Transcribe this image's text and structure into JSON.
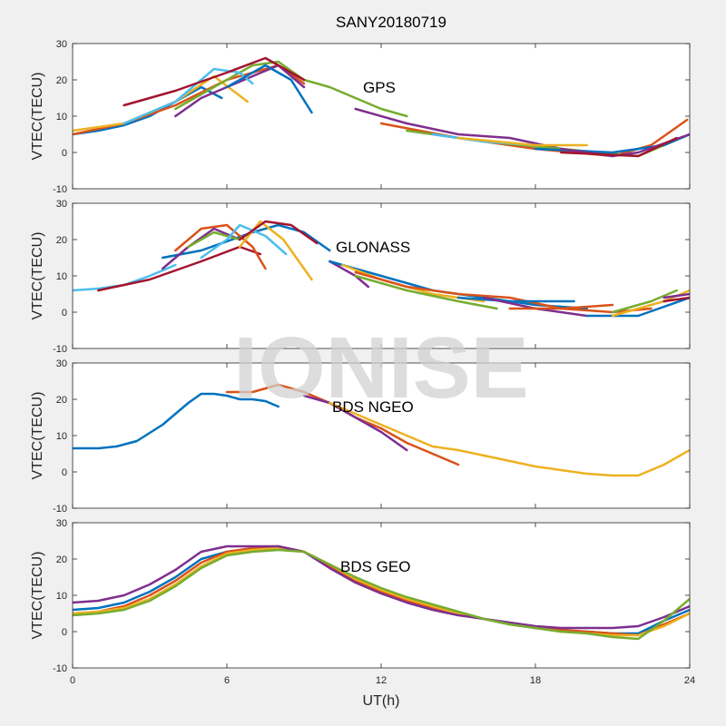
{
  "figure": {
    "title": "SANY20180719",
    "watermark": "IONISE"
  },
  "chart_data": [
    {
      "type": "line",
      "annotation": "GPS",
      "ylabel": "VTEC(TECU)",
      "xlabel": "",
      "xlim": [
        0,
        24
      ],
      "ylim": [
        -10,
        30
      ],
      "xticks": [
        0,
        6,
        12,
        18,
        24
      ],
      "yticks": [
        -10,
        0,
        10,
        20,
        30
      ],
      "series": [
        {
          "color": "#0072BD",
          "x": [
            0,
            1,
            2,
            3,
            4,
            5,
            5.8
          ],
          "y": [
            5,
            6,
            7.5,
            10,
            14,
            18,
            15
          ]
        },
        {
          "color": "#D95319",
          "x": [
            0,
            2,
            4,
            6,
            8,
            9
          ],
          "y": [
            5,
            8,
            13,
            20,
            24,
            19
          ]
        },
        {
          "color": "#EDB120",
          "x": [
            0,
            2,
            4,
            5.5,
            6.8
          ],
          "y": [
            6,
            8,
            14,
            21,
            14
          ]
        },
        {
          "color": "#7E2F8E",
          "x": [
            4,
            5,
            6,
            7,
            8,
            9
          ],
          "y": [
            10,
            15,
            18,
            21,
            24,
            18
          ]
        },
        {
          "color": "#77AC30",
          "x": [
            4,
            5.5,
            7,
            8,
            9,
            10,
            11,
            12,
            13
          ],
          "y": [
            12,
            18,
            24,
            25,
            20,
            18,
            15,
            12,
            10
          ]
        },
        {
          "color": "#4DBEEE",
          "x": [
            2,
            4,
            5.5,
            6.5,
            7
          ],
          "y": [
            8,
            14,
            23,
            22,
            19
          ]
        },
        {
          "color": "#A2142F",
          "x": [
            2,
            4,
            6,
            7.5,
            9
          ],
          "y": [
            13,
            17,
            22,
            26,
            20
          ]
        },
        {
          "color": "#0072BD",
          "x": [
            6,
            7.5,
            8.5,
            9.3
          ],
          "y": [
            18,
            24,
            20,
            11
          ]
        },
        {
          "color": "#7E2F8E",
          "x": [
            11,
            13,
            15,
            17,
            19
          ],
          "y": [
            12,
            8,
            5,
            4,
            1
          ]
        },
        {
          "color": "#D95319",
          "x": [
            12,
            15,
            18,
            21,
            22.5,
            23.9
          ],
          "y": [
            8,
            4,
            1,
            -1,
            2,
            9
          ]
        },
        {
          "color": "#77AC30",
          "x": [
            13,
            16,
            19,
            22,
            24
          ],
          "y": [
            6,
            3,
            1,
            -1,
            5
          ]
        },
        {
          "color": "#4DBEEE",
          "x": [
            14,
            16,
            18
          ],
          "y": [
            5,
            3,
            2
          ]
        },
        {
          "color": "#EDB120",
          "x": [
            15,
            18,
            20
          ],
          "y": [
            4,
            2,
            2
          ]
        },
        {
          "color": "#0072BD",
          "x": [
            18,
            21,
            23,
            24
          ],
          "y": [
            1,
            0,
            2,
            5
          ]
        },
        {
          "color": "#7E2F8E",
          "x": [
            19,
            21,
            22,
            24
          ],
          "y": [
            1,
            -1,
            0,
            5
          ]
        },
        {
          "color": "#A2142F",
          "x": [
            19,
            22,
            23.5
          ],
          "y": [
            0,
            -1,
            4
          ]
        }
      ]
    },
    {
      "type": "line",
      "annotation": "GLONASS",
      "ylabel": "VTEC(TECU)",
      "xlabel": "",
      "xlim": [
        0,
        24
      ],
      "ylim": [
        -10,
        30
      ],
      "xticks": [
        0,
        6,
        12,
        18,
        24
      ],
      "yticks": [
        -10,
        0,
        10,
        20,
        30
      ],
      "series": [
        {
          "color": "#4DBEEE",
          "x": [
            0,
            1,
            2,
            3,
            4
          ],
          "y": [
            6,
            6.5,
            7.5,
            10,
            13
          ]
        },
        {
          "color": "#A2142F",
          "x": [
            1,
            3,
            5,
            6.5,
            7.3
          ],
          "y": [
            6,
            9,
            14,
            18,
            16
          ]
        },
        {
          "color": "#0072BD",
          "x": [
            3.5,
            5,
            7,
            8,
            9,
            10
          ],
          "y": [
            15,
            17,
            22,
            24,
            22,
            17
          ]
        },
        {
          "color": "#D95319",
          "x": [
            4,
            5,
            6,
            7,
            7.5
          ],
          "y": [
            17,
            23,
            24,
            18,
            12
          ]
        },
        {
          "color": "#7E2F8E",
          "x": [
            3.5,
            4.5,
            5.5,
            6.5
          ],
          "y": [
            12,
            18,
            23,
            20
          ]
        },
        {
          "color": "#77AC30",
          "x": [
            4.5,
            5.5,
            6.5
          ],
          "y": [
            18,
            22,
            20
          ]
        },
        {
          "color": "#4DBEEE",
          "x": [
            5,
            6,
            6.5,
            7.5,
            8.3
          ],
          "y": [
            15,
            20,
            24,
            21,
            16
          ]
        },
        {
          "color": "#EDB120",
          "x": [
            6.5,
            7.3,
            8.2,
            9.3
          ],
          "y": [
            18,
            25,
            20,
            9
          ]
        },
        {
          "color": "#A2142F",
          "x": [
            6.5,
            7.5,
            8.5,
            9.5
          ],
          "y": [
            20,
            25,
            24,
            19
          ]
        },
        {
          "color": "#7E2F8E",
          "x": [
            10,
            11,
            11.5
          ],
          "y": [
            14,
            10,
            7
          ]
        },
        {
          "color": "#0072BD",
          "x": [
            10,
            12,
            14,
            16,
            18,
            20
          ],
          "y": [
            14,
            10,
            6,
            4,
            2,
            1
          ]
        },
        {
          "color": "#EDB120",
          "x": [
            10.5,
            12,
            14,
            16
          ],
          "y": [
            13,
            9,
            5,
            3
          ]
        },
        {
          "color": "#D95319",
          "x": [
            11,
            13,
            15,
            17,
            19,
            21,
            22.5
          ],
          "y": [
            11,
            7,
            5,
            4,
            1,
            0,
            1
          ]
        },
        {
          "color": "#77AC30",
          "x": [
            11,
            13,
            15,
            16.5
          ],
          "y": [
            10,
            6,
            3,
            1
          ]
        },
        {
          "color": "#0072BD",
          "x": [
            15,
            17,
            19.5
          ],
          "y": [
            4,
            3,
            3
          ]
        },
        {
          "color": "#7E2F8E",
          "x": [
            16,
            18,
            20
          ],
          "y": [
            4,
            1,
            -1
          ]
        },
        {
          "color": "#D95319",
          "x": [
            17,
            19,
            21
          ],
          "y": [
            1,
            1,
            2
          ]
        },
        {
          "color": "#0072BD",
          "x": [
            20,
            22,
            24
          ],
          "y": [
            -1,
            -1,
            4
          ]
        },
        {
          "color": "#77AC30",
          "x": [
            21,
            22.5,
            23.5
          ],
          "y": [
            0,
            3,
            6
          ]
        },
        {
          "color": "#EDB120",
          "x": [
            21,
            23,
            24
          ],
          "y": [
            -1,
            3,
            6
          ]
        },
        {
          "color": "#A2142F",
          "x": [
            23,
            24
          ],
          "y": [
            3,
            4
          ]
        },
        {
          "color": "#7E2F8E",
          "x": [
            23,
            24
          ],
          "y": [
            4,
            5
          ]
        }
      ]
    },
    {
      "type": "line",
      "annotation": "BDS NGEO",
      "ylabel": "VTEC(TECU)",
      "xlabel": "",
      "xlim": [
        0,
        24
      ],
      "ylim": [
        -10,
        30
      ],
      "xticks": [
        0,
        6,
        12,
        18,
        24
      ],
      "yticks": [
        -10,
        0,
        10,
        20,
        30
      ],
      "series": [
        {
          "color": "#0072BD",
          "x": [
            0,
            1,
            1.7,
            2.5,
            3.5,
            4.5,
            5,
            5.5,
            6,
            6.5,
            7,
            7.5,
            8
          ],
          "y": [
            6.5,
            6.5,
            7,
            8.5,
            13,
            19,
            21.5,
            21.5,
            21,
            20,
            20,
            19.5,
            18
          ]
        },
        {
          "color": "#D95319",
          "x": [
            6,
            7,
            8,
            9,
            10,
            11,
            12,
            13,
            14,
            15
          ],
          "y": [
            22,
            22,
            24,
            22,
            19,
            15,
            12,
            8,
            5,
            2
          ]
        },
        {
          "color": "#7E2F8E",
          "x": [
            9,
            10,
            11,
            12,
            13
          ],
          "y": [
            21,
            19,
            15,
            11,
            6
          ]
        },
        {
          "color": "#EDB120",
          "x": [
            10,
            11,
            12,
            13,
            14,
            15,
            16,
            17,
            18,
            19,
            20,
            21,
            22,
            23,
            24
          ],
          "y": [
            19,
            16,
            13,
            10,
            7,
            6,
            4.5,
            3,
            1.5,
            0.5,
            -0.5,
            -1,
            -1,
            2,
            6
          ]
        }
      ]
    },
    {
      "type": "line",
      "annotation": "BDS GEO",
      "ylabel": "VTEC(TECU)",
      "xlabel": "UT(h)",
      "xlim": [
        0,
        24
      ],
      "ylim": [
        -10,
        30
      ],
      "xticks": [
        0,
        6,
        12,
        18,
        24
      ],
      "yticks": [
        -10,
        0,
        10,
        20,
        30
      ],
      "series": [
        {
          "color": "#0072BD",
          "x": [
            0,
            1,
            2,
            3,
            4,
            5,
            6,
            7,
            8,
            9,
            10,
            11,
            12,
            13,
            14,
            15,
            16,
            17,
            18,
            19,
            20,
            21,
            22,
            23,
            24
          ],
          "y": [
            6,
            6.5,
            8,
            11,
            15,
            20,
            22,
            22.5,
            23,
            22,
            18,
            14,
            11,
            9,
            7,
            5,
            3.5,
            2,
            1,
            0,
            0,
            -0.5,
            -0.5,
            3,
            6
          ]
        },
        {
          "color": "#D95319",
          "x": [
            0,
            1,
            2,
            3,
            4,
            5,
            6,
            7,
            8,
            9,
            10,
            11,
            12,
            13,
            14,
            15,
            16,
            17,
            18,
            19,
            20,
            21,
            22,
            23,
            24
          ],
          "y": [
            5,
            5.5,
            7,
            10,
            14,
            19,
            22,
            23,
            23.5,
            22,
            18,
            14,
            11,
            8.5,
            6.5,
            5,
            3.5,
            2,
            1,
            0.5,
            0,
            -0.5,
            -1,
            2,
            5
          ]
        },
        {
          "color": "#EDB120",
          "x": [
            0,
            1,
            2,
            3,
            4,
            5,
            6,
            7,
            8,
            9,
            10,
            11,
            12,
            13,
            14,
            15,
            16,
            17,
            18,
            19,
            20,
            21,
            22,
            23,
            24
          ],
          "y": [
            5,
            5.5,
            6.5,
            9,
            13,
            18,
            21.5,
            22.5,
            23,
            22,
            18.5,
            14.5,
            11.5,
            9,
            7,
            5,
            3.5,
            2,
            1,
            0,
            -0.5,
            -1,
            -1,
            1.5,
            5
          ]
        },
        {
          "color": "#7E2F8E",
          "x": [
            0,
            1,
            2,
            3,
            4,
            5,
            6,
            7,
            8,
            9,
            10,
            11,
            12,
            13,
            14,
            15,
            16,
            17,
            18,
            19,
            20,
            21,
            22,
            23,
            24
          ],
          "y": [
            8,
            8.5,
            10,
            13,
            17,
            22,
            23.5,
            23.5,
            23.5,
            22,
            17.5,
            13.5,
            10.5,
            8,
            6,
            4.5,
            3.5,
            2.5,
            1.5,
            1,
            1,
            1,
            1.5,
            4,
            7
          ]
        },
        {
          "color": "#77AC30",
          "x": [
            0,
            1,
            2,
            3,
            4,
            5,
            6,
            7,
            8,
            9,
            10,
            11,
            12,
            13,
            14,
            15,
            16,
            17,
            18,
            19,
            20,
            21,
            22,
            23,
            24
          ],
          "y": [
            4.5,
            5,
            6,
            8.5,
            12.5,
            17.5,
            21,
            22,
            22.5,
            22,
            18.5,
            15,
            12,
            9.5,
            7.5,
            5.5,
            3.5,
            2,
            1,
            0,
            -0.5,
            -1.5,
            -2,
            3,
            9
          ]
        }
      ]
    }
  ]
}
